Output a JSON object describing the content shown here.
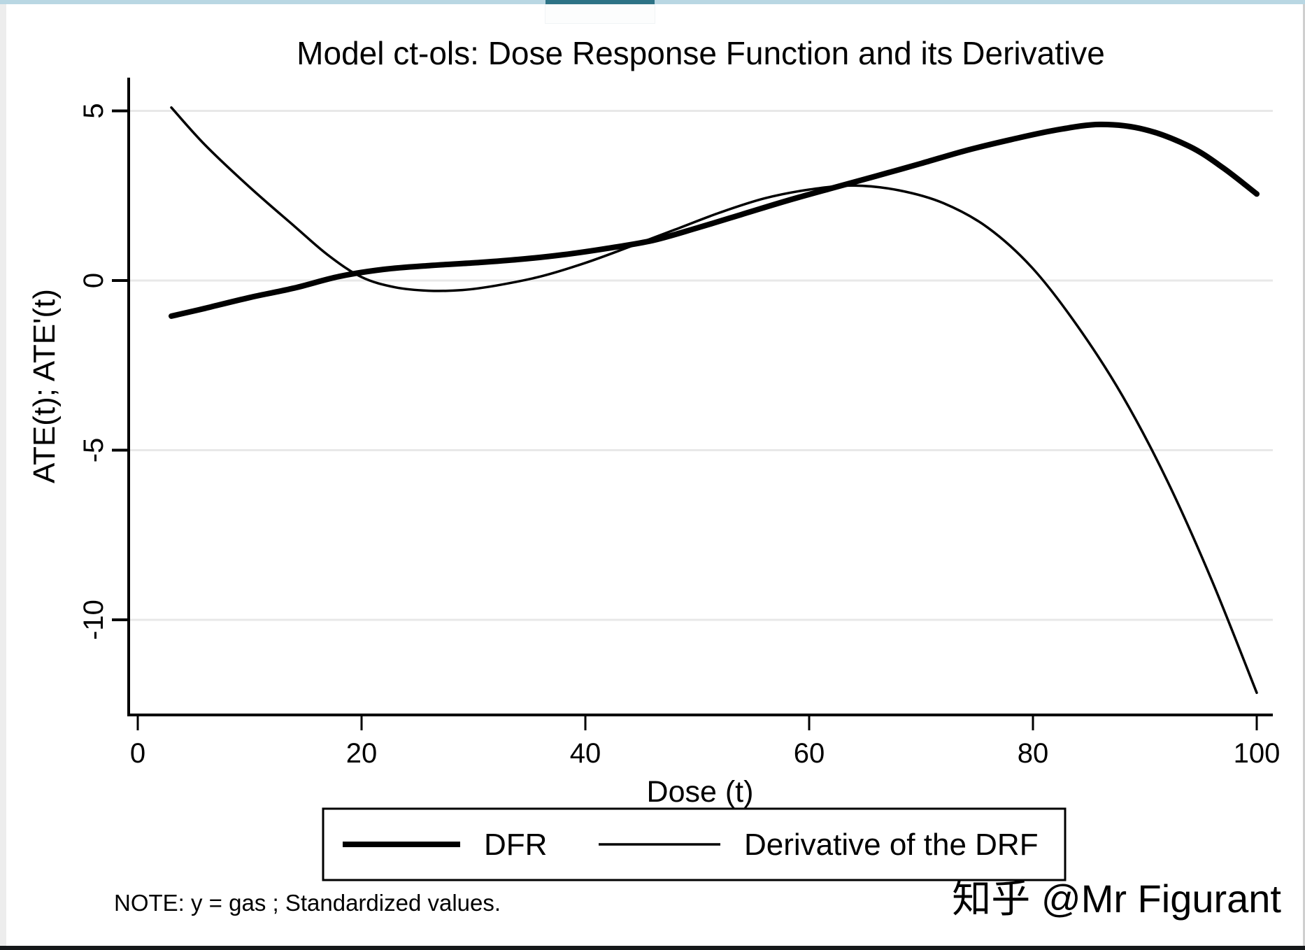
{
  "page": {
    "top_strip_color": "#b9d7e3",
    "top_strip_indicator_color": "#2d7386",
    "left_strip_color": "#ededed",
    "right_border_color": "#cfcfcf",
    "bottom_bar_color": "#15181a",
    "watermark": "知乎 @Mr Figurant",
    "watermark_color": "#c5c5c3"
  },
  "chart_data": {
    "type": "line",
    "title": "Model ct-ols: Dose Response Function and its Derivative",
    "xlabel": "Dose (t)",
    "ylabel": "ATE(t); ATE'(t)",
    "note": "NOTE: y = gas ; Standardized values.",
    "xlim": [
      0,
      100
    ],
    "ylim": [
      -12.5,
      5.8
    ],
    "x_ticks": [
      0,
      20,
      40,
      60,
      80,
      100
    ],
    "y_ticks": [
      5,
      0,
      -5,
      -10
    ],
    "grid": "horizontal-only",
    "gridline_color": "#e8e8e8",
    "axis_color": "#000000",
    "legend_position": "bottom-center-boxed",
    "series": [
      {
        "name": "DFR",
        "color": "#000000",
        "stroke_width": 8,
        "points": [
          [
            3,
            -1.05
          ],
          [
            6,
            -0.82
          ],
          [
            10,
            -0.5
          ],
          [
            14,
            -0.22
          ],
          [
            18,
            0.12
          ],
          [
            22,
            0.33
          ],
          [
            26,
            0.44
          ],
          [
            30,
            0.52
          ],
          [
            34,
            0.62
          ],
          [
            38,
            0.76
          ],
          [
            42,
            0.95
          ],
          [
            46,
            1.18
          ],
          [
            50,
            1.55
          ],
          [
            54,
            1.95
          ],
          [
            58,
            2.35
          ],
          [
            62,
            2.72
          ],
          [
            66,
            3.08
          ],
          [
            70,
            3.45
          ],
          [
            74,
            3.83
          ],
          [
            78,
            4.15
          ],
          [
            82,
            4.43
          ],
          [
            86,
            4.6
          ],
          [
            90,
            4.45
          ],
          [
            94,
            3.95
          ],
          [
            97,
            3.32
          ],
          [
            100,
            2.55
          ]
        ]
      },
      {
        "name": "Derivative of the DRF",
        "color": "#000000",
        "stroke_width": 3.5,
        "points": [
          [
            3,
            5.1
          ],
          [
            6,
            4.0
          ],
          [
            10,
            2.75
          ],
          [
            14,
            1.6
          ],
          [
            17,
            0.75
          ],
          [
            20,
            0.1
          ],
          [
            23,
            -0.2
          ],
          [
            26,
            -0.3
          ],
          [
            29,
            -0.28
          ],
          [
            32,
            -0.15
          ],
          [
            36,
            0.12
          ],
          [
            40,
            0.52
          ],
          [
            44,
            1.0
          ],
          [
            48,
            1.5
          ],
          [
            52,
            2.0
          ],
          [
            56,
            2.42
          ],
          [
            60,
            2.68
          ],
          [
            64,
            2.8
          ],
          [
            68,
            2.66
          ],
          [
            72,
            2.28
          ],
          [
            76,
            1.55
          ],
          [
            80,
            0.35
          ],
          [
            84,
            -1.35
          ],
          [
            88,
            -3.4
          ],
          [
            92,
            -5.9
          ],
          [
            96,
            -8.85
          ],
          [
            100,
            -12.15
          ]
        ]
      }
    ]
  }
}
